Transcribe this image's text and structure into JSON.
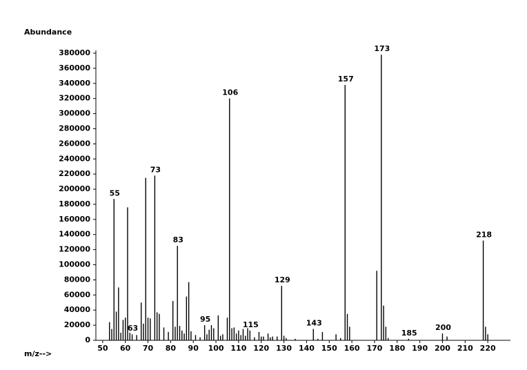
{
  "chart_data": {
    "type": "bar",
    "y_label": "Abundance",
    "x_label": "m/z-->",
    "color": "#000000",
    "x": [
      53,
      54,
      55,
      56,
      57,
      58,
      59,
      60,
      61,
      62,
      63,
      65,
      67,
      68,
      69,
      70,
      71,
      73,
      74,
      75,
      77,
      79,
      81,
      82,
      83,
      84,
      85,
      86,
      87,
      88,
      89,
      91,
      93,
      95,
      96,
      97,
      98,
      99,
      101,
      102,
      103,
      105,
      106,
      107,
      108,
      109,
      110,
      111,
      112,
      113,
      114,
      115,
      117,
      119,
      120,
      121,
      123,
      124,
      125,
      127,
      129,
      130,
      131,
      135,
      143,
      145,
      147,
      153,
      155,
      157,
      158,
      159,
      171,
      173,
      174,
      175,
      176,
      185,
      200,
      202,
      218,
      219,
      220
    ],
    "values": [
      24000,
      15000,
      187000,
      38000,
      70000,
      10000,
      27000,
      30000,
      176000,
      10000,
      8000,
      7000,
      50000,
      22000,
      215000,
      30000,
      29000,
      218000,
      37000,
      35000,
      17000,
      11000,
      52000,
      18000,
      125000,
      19000,
      13000,
      9000,
      58000,
      77000,
      12000,
      7000,
      4000,
      20000,
      8000,
      14000,
      20000,
      16000,
      33000,
      6000,
      8000,
      30000,
      320000,
      16000,
      17000,
      9000,
      13000,
      7000,
      15000,
      6000,
      16000,
      13000,
      4000,
      11000,
      5000,
      5000,
      9000,
      4000,
      5000,
      5000,
      72000,
      6000,
      3000,
      2000,
      15000,
      2000,
      11000,
      8000,
      3000,
      338000,
      35000,
      18000,
      92000,
      378000,
      46000,
      18000,
      3000,
      2000,
      9000,
      5000,
      132000,
      18000,
      8000
    ],
    "annotations": [
      {
        "text": "55",
        "x": 55,
        "y": 187000
      },
      {
        "text": "63",
        "x": 63,
        "y": 8000
      },
      {
        "text": "73",
        "x": 73,
        "y": 218000
      },
      {
        "text": "83",
        "x": 83,
        "y": 125000
      },
      {
        "text": "95",
        "x": 95,
        "y": 20000
      },
      {
        "text": "106",
        "x": 106,
        "y": 320000
      },
      {
        "text": "115",
        "x": 115,
        "y": 13000
      },
      {
        "text": "129",
        "x": 129,
        "y": 72000
      },
      {
        "text": "143",
        "x": 143,
        "y": 15000
      },
      {
        "text": "157",
        "x": 157,
        "y": 338000
      },
      {
        "text": "173",
        "x": 173,
        "y": 378000
      },
      {
        "text": "185",
        "x": 185,
        "y": 2000
      },
      {
        "text": "200",
        "x": 200,
        "y": 9000
      },
      {
        "text": "218",
        "x": 218,
        "y": 132000
      }
    ],
    "xlim": [
      47,
      230
    ],
    "xticks": [
      50,
      60,
      70,
      80,
      90,
      100,
      110,
      120,
      130,
      140,
      150,
      160,
      170,
      180,
      190,
      200,
      210,
      220
    ],
    "ylim": [
      0,
      380000
    ],
    "yticks": [
      0,
      20000,
      40000,
      60000,
      80000,
      100000,
      120000,
      140000,
      160000,
      180000,
      200000,
      220000,
      240000,
      260000,
      280000,
      300000,
      320000,
      340000,
      360000,
      380000
    ],
    "grid": false
  }
}
